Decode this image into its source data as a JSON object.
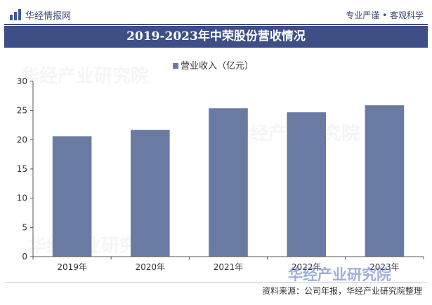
{
  "header": {
    "brand": "华经情报网",
    "tagline": "专业严谨 • 客观科学"
  },
  "chart_data": {
    "type": "bar",
    "title": "2019-2023年中荣股份营收情况",
    "legend": "营业收入（亿元）",
    "categories": [
      "2019年",
      "2020年",
      "2021年",
      "2022年",
      "2023年"
    ],
    "series": [
      {
        "name": "营业收入（亿元）",
        "values": [
          20.6,
          21.7,
          25.4,
          24.7,
          25.9
        ]
      }
    ],
    "ylim": [
      0,
      30
    ],
    "yticks": [
      0,
      5,
      10,
      15,
      20,
      25,
      30
    ],
    "xlabel": "",
    "ylabel": "",
    "grid": false,
    "legend_position": "top-center",
    "bar_color": "#6a7ba3"
  },
  "footer": {
    "source": "资料来源：公司年报，华经产业研究院整理"
  },
  "watermark": {
    "text": "华经产业研究院"
  }
}
